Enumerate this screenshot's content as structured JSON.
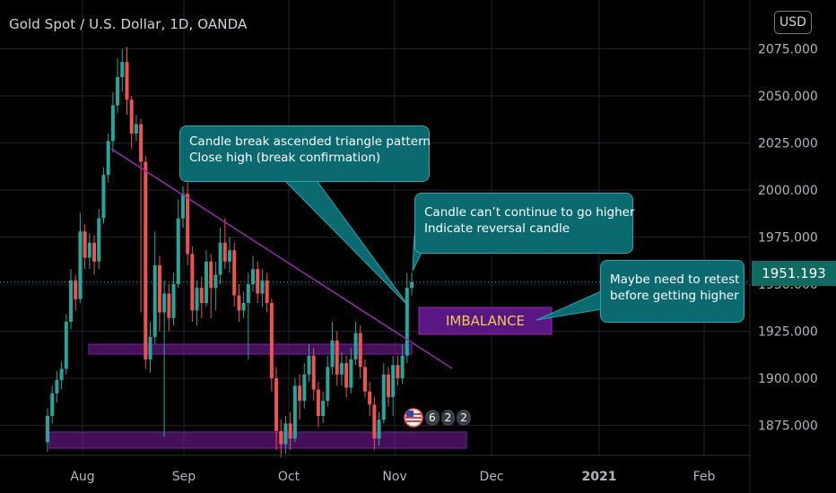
{
  "header": {
    "title": "Gold Spot / U.S. Dollar, 1D, OANDA",
    "currency_button": "USD"
  },
  "last_price_label": "1951.193",
  "annotations": {
    "callout1": [
      "Candle break ascended triangle pattern",
      "Close high (break confirmation)"
    ],
    "callout2": [
      "Candle can’t continue to go higher",
      "Indicate reversal candle"
    ],
    "callout3": [
      "Maybe need to retest",
      "before getting higher"
    ],
    "imbalance_label": "IMBALANCE",
    "event_badge": {
      "icon": "us-flag-icon",
      "count_a": "6",
      "count_b": "2",
      "count_c": "2"
    }
  },
  "colors": {
    "up": "#26a69a",
    "down": "#ef5350",
    "trendline": "#9c27b0",
    "zone": "#7b1fa2",
    "callout": "#0a6a6f"
  },
  "chart_data": {
    "type": "candlestick",
    "title": "Gold Spot / U.S. Dollar, 1D, OANDA",
    "x_tick_labels": [
      "Aug",
      "Sep",
      "Oct",
      "Nov",
      "Dec",
      "2021",
      "Feb"
    ],
    "y_tick_labels": [
      "2075.000",
      "2050.000",
      "2025.000",
      "2000.000",
      "1975.000",
      "1950.000",
      "1925.000",
      "1900.000",
      "1875.000"
    ],
    "yticks": [
      2075,
      2050,
      2025,
      2000,
      1975,
      1950,
      1925,
      1900,
      1875
    ],
    "ylim": [
      1856,
      2085
    ],
    "last_price": 1951.193,
    "candles": [
      {
        "o": 1866,
        "c": 1880,
        "h": 1884,
        "l": 1861
      },
      {
        "o": 1880,
        "c": 1892,
        "h": 1896,
        "l": 1876
      },
      {
        "o": 1892,
        "c": 1899,
        "h": 1904,
        "l": 1887
      },
      {
        "o": 1899,
        "c": 1905,
        "h": 1909,
        "l": 1894
      },
      {
        "o": 1905,
        "c": 1930,
        "h": 1934,
        "l": 1902
      },
      {
        "o": 1930,
        "c": 1952,
        "h": 1958,
        "l": 1926
      },
      {
        "o": 1952,
        "c": 1942,
        "h": 1955,
        "l": 1936
      },
      {
        "o": 1942,
        "c": 1978,
        "h": 1988,
        "l": 1940
      },
      {
        "o": 1978,
        "c": 1964,
        "h": 1982,
        "l": 1958
      },
      {
        "o": 1964,
        "c": 1972,
        "h": 1977,
        "l": 1958
      },
      {
        "o": 1972,
        "c": 1962,
        "h": 1976,
        "l": 1955
      },
      {
        "o": 1962,
        "c": 1985,
        "h": 1990,
        "l": 1958
      },
      {
        "o": 1985,
        "c": 2008,
        "h": 2012,
        "l": 1982
      },
      {
        "o": 2008,
        "c": 2026,
        "h": 2030,
        "l": 2004
      },
      {
        "o": 2026,
        "c": 2045,
        "h": 2052,
        "l": 2020
      },
      {
        "o": 2045,
        "c": 2060,
        "h": 2070,
        "l": 2041
      },
      {
        "o": 2060,
        "c": 2068,
        "h": 2075,
        "l": 2052
      },
      {
        "o": 2068,
        "c": 2048,
        "h": 2076,
        "l": 2040
      },
      {
        "o": 2048,
        "c": 2030,
        "h": 2050,
        "l": 2022
      },
      {
        "o": 2030,
        "c": 2035,
        "h": 2040,
        "l": 2026
      },
      {
        "o": 2035,
        "c": 2015,
        "h": 2038,
        "l": 1935
      },
      {
        "o": 2015,
        "c": 1910,
        "h": 2018,
        "l": 1905
      },
      {
        "o": 1910,
        "c": 1922,
        "h": 1930,
        "l": 1903
      },
      {
        "o": 1922,
        "c": 1960,
        "h": 1978,
        "l": 1918
      },
      {
        "o": 1960,
        "c": 1935,
        "h": 1965,
        "l": 1925
      },
      {
        "o": 1935,
        "c": 1945,
        "h": 1952,
        "l": 1869
      },
      {
        "o": 1945,
        "c": 1932,
        "h": 1950,
        "l": 1925
      },
      {
        "o": 1932,
        "c": 1950,
        "h": 1956,
        "l": 1928
      },
      {
        "o": 1950,
        "c": 1985,
        "h": 1995,
        "l": 1948
      },
      {
        "o": 1985,
        "c": 1998,
        "h": 2002,
        "l": 1980
      },
      {
        "o": 1998,
        "c": 1966,
        "h": 2005,
        "l": 1960
      },
      {
        "o": 1966,
        "c": 1936,
        "h": 1970,
        "l": 1930
      },
      {
        "o": 1936,
        "c": 1948,
        "h": 1952,
        "l": 1928
      },
      {
        "o": 1948,
        "c": 1940,
        "h": 1954,
        "l": 1932
      },
      {
        "o": 1940,
        "c": 1962,
        "h": 1968,
        "l": 1938
      },
      {
        "o": 1962,
        "c": 1948,
        "h": 1966,
        "l": 1932
      },
      {
        "o": 1948,
        "c": 1955,
        "h": 1962,
        "l": 1936
      },
      {
        "o": 1955,
        "c": 1972,
        "h": 1980,
        "l": 1950
      },
      {
        "o": 1972,
        "c": 1962,
        "h": 1985,
        "l": 1958
      },
      {
        "o": 1962,
        "c": 1968,
        "h": 1975,
        "l": 1956
      },
      {
        "o": 1968,
        "c": 1944,
        "h": 1972,
        "l": 1938
      },
      {
        "o": 1944,
        "c": 1936,
        "h": 1950,
        "l": 1930
      },
      {
        "o": 1936,
        "c": 1940,
        "h": 1946,
        "l": 1932
      },
      {
        "o": 1940,
        "c": 1950,
        "h": 1956,
        "l": 1910
      },
      {
        "o": 1950,
        "c": 1958,
        "h": 1965,
        "l": 1946
      },
      {
        "o": 1958,
        "c": 1945,
        "h": 1962,
        "l": 1940
      },
      {
        "o": 1945,
        "c": 1952,
        "h": 1958,
        "l": 1938
      },
      {
        "o": 1952,
        "c": 1940,
        "h": 1956,
        "l": 1935
      },
      {
        "o": 1940,
        "c": 1900,
        "h": 1942,
        "l": 1893
      },
      {
        "o": 1900,
        "c": 1872,
        "h": 1906,
        "l": 1862
      },
      {
        "o": 1872,
        "c": 1865,
        "h": 1878,
        "l": 1858
      },
      {
        "o": 1865,
        "c": 1876,
        "h": 1880,
        "l": 1860
      },
      {
        "o": 1876,
        "c": 1868,
        "h": 1882,
        "l": 1862
      },
      {
        "o": 1868,
        "c": 1896,
        "h": 1900,
        "l": 1866
      },
      {
        "o": 1896,
        "c": 1888,
        "h": 1902,
        "l": 1878
      },
      {
        "o": 1888,
        "c": 1902,
        "h": 1908,
        "l": 1884
      },
      {
        "o": 1902,
        "c": 1912,
        "h": 1918,
        "l": 1898
      },
      {
        "o": 1912,
        "c": 1894,
        "h": 1916,
        "l": 1888
      },
      {
        "o": 1894,
        "c": 1880,
        "h": 1898,
        "l": 1874
      },
      {
        "o": 1880,
        "c": 1888,
        "h": 1893,
        "l": 1876
      },
      {
        "o": 1888,
        "c": 1906,
        "h": 1912,
        "l": 1885
      },
      {
        "o": 1906,
        "c": 1920,
        "h": 1930,
        "l": 1902
      },
      {
        "o": 1920,
        "c": 1902,
        "h": 1925,
        "l": 1896
      },
      {
        "o": 1902,
        "c": 1908,
        "h": 1914,
        "l": 1896
      },
      {
        "o": 1908,
        "c": 1895,
        "h": 1912,
        "l": 1890
      },
      {
        "o": 1895,
        "c": 1910,
        "h": 1916,
        "l": 1892
      },
      {
        "o": 1910,
        "c": 1924,
        "h": 1930,
        "l": 1907
      },
      {
        "o": 1924,
        "c": 1906,
        "h": 1928,
        "l": 1900
      },
      {
        "o": 1906,
        "c": 1893,
        "h": 1910,
        "l": 1890
      },
      {
        "o": 1893,
        "c": 1886,
        "h": 1898,
        "l": 1880
      },
      {
        "o": 1886,
        "c": 1868,
        "h": 1890,
        "l": 1862
      },
      {
        "o": 1868,
        "c": 1878,
        "h": 1882,
        "l": 1864
      },
      {
        "o": 1878,
        "c": 1902,
        "h": 1908,
        "l": 1876
      },
      {
        "o": 1902,
        "c": 1890,
        "h": 1906,
        "l": 1885
      },
      {
        "o": 1890,
        "c": 1907,
        "h": 1912,
        "l": 1880
      },
      {
        "o": 1907,
        "c": 1900,
        "h": 1912,
        "l": 1896
      },
      {
        "o": 1900,
        "c": 1912,
        "h": 1918,
        "l": 1897
      },
      {
        "o": 1912,
        "c": 1948,
        "h": 1956,
        "l": 1908
      },
      {
        "o": 1948,
        "c": 1951,
        "h": 1956,
        "l": 1944
      }
    ]
  }
}
